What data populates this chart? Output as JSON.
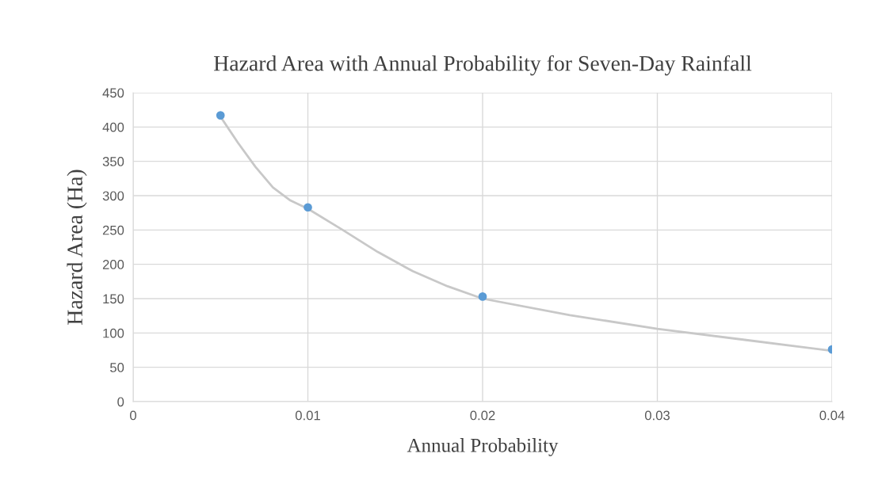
{
  "chart_data": {
    "type": "scatter",
    "title": "Hazard Area with Annual Probability for Seven-Day Rainfall",
    "xlabel": "Annual Probability",
    "ylabel": "Hazard Area (Ha)",
    "x": [
      0.005,
      0.01,
      0.02,
      0.04
    ],
    "series": [
      {
        "type": "line",
        "color": "#c8c8c8",
        "x": [
          0.005,
          0.006,
          0.007,
          0.008,
          0.009,
          0.01,
          0.012,
          0.014,
          0.016,
          0.018,
          0.02,
          0.025,
          0.03,
          0.035,
          0.04
        ],
        "values": [
          415,
          377,
          342,
          312,
          293,
          281,
          250,
          218,
          190,
          168,
          150,
          126,
          106,
          90,
          74
        ],
        "marker": "none"
      },
      {
        "color": "#5b9bd5",
        "values": [
          417,
          283,
          153,
          76
        ],
        "marker": "circle"
      }
    ],
    "xlim": [
      0,
      0.04
    ],
    "xticks": [
      0,
      0.01,
      0.02,
      0.03,
      0.04
    ],
    "ylim": [
      0,
      450
    ],
    "yticks": [
      0,
      50,
      100,
      150,
      200,
      250,
      300,
      350,
      400,
      450
    ],
    "grid": true
  }
}
